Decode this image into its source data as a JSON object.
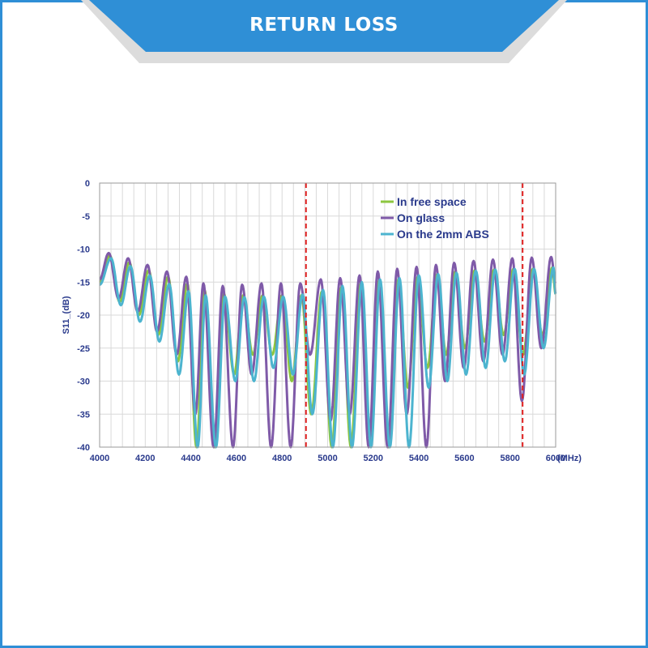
{
  "header": {
    "title": "RETURN LOSS"
  },
  "colors": {
    "frame": "#2f8fd6",
    "free_space": "#8cc63f",
    "glass": "#7f5aa8",
    "abs": "#4cb4cf",
    "marker": "#e02020",
    "axis_text": "#2a3a8c"
  },
  "chart_data": {
    "type": "line",
    "title": "",
    "xlabel": "(MHz)",
    "ylabel": "S11_(dB)",
    "xlim": [
      4000,
      6000
    ],
    "ylim": [
      -40,
      0
    ],
    "x_ticks": [
      "4000",
      "4200",
      "4400",
      "4600",
      "4800",
      "5000",
      "5200",
      "5400",
      "5600",
      "5800",
      "6000"
    ],
    "y_ticks": [
      "0",
      "-5",
      "-10",
      "-15",
      "-20",
      "-25",
      "-30",
      "-35",
      "-40"
    ],
    "grid": true,
    "legend_position": "top-right",
    "markers_x": [
      4905,
      5855
    ],
    "series": [
      {
        "name": "In free space",
        "color": "#8cc63f",
        "width": 3,
        "peaks": [
          [
            4045,
            -11
          ],
          [
            4130,
            -12
          ],
          [
            4215,
            -13.2
          ],
          [
            4300,
            -14.2
          ],
          [
            4385,
            -15.2
          ],
          [
            4460,
            -16.2
          ],
          [
            4545,
            -16.8
          ],
          [
            4630,
            -17
          ],
          [
            4715,
            -17
          ],
          [
            4800,
            -17
          ],
          [
            4885,
            -17
          ],
          [
            4975,
            -16.4
          ],
          [
            5060,
            -15.8
          ],
          [
            5145,
            -15.2
          ],
          [
            5225,
            -14.8
          ],
          [
            5310,
            -14.6
          ],
          [
            5395,
            -14.2
          ],
          [
            5480,
            -13.8
          ],
          [
            5560,
            -13.4
          ],
          [
            5645,
            -13.2
          ],
          [
            5730,
            -13.1
          ],
          [
            5815,
            -13
          ],
          [
            5900,
            -13
          ],
          [
            5985,
            -12.8
          ]
        ],
        "nulls": [
          [
            4088,
            -18
          ],
          [
            4172,
            -20
          ],
          [
            4257,
            -23
          ],
          [
            4343,
            -27
          ],
          [
            4425,
            -40
          ],
          [
            4505,
            -40
          ],
          [
            4590,
            -29
          ],
          [
            4672,
            -26
          ],
          [
            4757,
            -26
          ],
          [
            4843,
            -30
          ],
          [
            4928,
            -35
          ],
          [
            5018,
            -40
          ],
          [
            5102,
            -40
          ],
          [
            5185,
            -38
          ],
          [
            5268,
            -40
          ],
          [
            5352,
            -31
          ],
          [
            5438,
            -28
          ],
          [
            5520,
            -26
          ],
          [
            5602,
            -25
          ],
          [
            5688,
            -24
          ],
          [
            5772,
            -23
          ],
          [
            5857,
            -26
          ],
          [
            5942,
            -23
          ]
        ]
      },
      {
        "name": "On glass",
        "color": "#7f5aa8",
        "width": 3,
        "peaks": [
          [
            4040,
            -10.6
          ],
          [
            4125,
            -11.4
          ],
          [
            4210,
            -12.4
          ],
          [
            4295,
            -13.4
          ],
          [
            4380,
            -14.2
          ],
          [
            4455,
            -15.2
          ],
          [
            4540,
            -15.6
          ],
          [
            4625,
            -15.4
          ],
          [
            4710,
            -15.2
          ],
          [
            4795,
            -15.2
          ],
          [
            4880,
            -15.2
          ],
          [
            4970,
            -14.6
          ],
          [
            5055,
            -14.4
          ],
          [
            5140,
            -14
          ],
          [
            5220,
            -13.4
          ],
          [
            5305,
            -13
          ],
          [
            5390,
            -12.7
          ],
          [
            5475,
            -12.4
          ],
          [
            5555,
            -12.1
          ],
          [
            5640,
            -11.8
          ],
          [
            5725,
            -11.6
          ],
          [
            5810,
            -11.4
          ],
          [
            5895,
            -11.3
          ],
          [
            5980,
            -11.2
          ]
        ],
        "nulls": [
          [
            4083,
            -17.5
          ],
          [
            4167,
            -19.5
          ],
          [
            4252,
            -22.5
          ],
          [
            4338,
            -26
          ],
          [
            4420,
            -35
          ],
          [
            4500,
            -40
          ],
          [
            4585,
            -40
          ],
          [
            4667,
            -29
          ],
          [
            4752,
            -40
          ],
          [
            4838,
            -40
          ],
          [
            4923,
            -26
          ],
          [
            5013,
            -36
          ],
          [
            5097,
            -35
          ],
          [
            5180,
            -40
          ],
          [
            5263,
            -40
          ],
          [
            5347,
            -35
          ],
          [
            5433,
            -40
          ],
          [
            5515,
            -30
          ],
          [
            5597,
            -28
          ],
          [
            5683,
            -27
          ],
          [
            5767,
            -26
          ],
          [
            5852,
            -33
          ],
          [
            5937,
            -25
          ]
        ]
      },
      {
        "name": "On the 2mm ABS",
        "color": "#4cb4cf",
        "width": 3,
        "peaks": [
          [
            4050,
            -11.4
          ],
          [
            4135,
            -12.6
          ],
          [
            4220,
            -14
          ],
          [
            4305,
            -15.3
          ],
          [
            4390,
            -16.4
          ],
          [
            4465,
            -17
          ],
          [
            4550,
            -17.2
          ],
          [
            4635,
            -17.3
          ],
          [
            4720,
            -17.2
          ],
          [
            4805,
            -17.2
          ],
          [
            4890,
            -16.9
          ],
          [
            4980,
            -16.2
          ],
          [
            5065,
            -15.6
          ],
          [
            5150,
            -15
          ],
          [
            5230,
            -14.6
          ],
          [
            5315,
            -14.4
          ],
          [
            5400,
            -14
          ],
          [
            5485,
            -13.8
          ],
          [
            5565,
            -13.6
          ],
          [
            5650,
            -13.3
          ],
          [
            5735,
            -13.1
          ],
          [
            5820,
            -13
          ],
          [
            5905,
            -13
          ],
          [
            5990,
            -12.8
          ]
        ],
        "nulls": [
          [
            4093,
            -18.5
          ],
          [
            4177,
            -21
          ],
          [
            4262,
            -24
          ],
          [
            4348,
            -29
          ],
          [
            4430,
            -40
          ],
          [
            4510,
            -40
          ],
          [
            4595,
            -30
          ],
          [
            4677,
            -30
          ],
          [
            4762,
            -28
          ],
          [
            4848,
            -29
          ],
          [
            4933,
            -35
          ],
          [
            5023,
            -40
          ],
          [
            5107,
            -40
          ],
          [
            5190,
            -40
          ],
          [
            5273,
            -40
          ],
          [
            5357,
            -40
          ],
          [
            5443,
            -31
          ],
          [
            5525,
            -30
          ],
          [
            5607,
            -29
          ],
          [
            5693,
            -28
          ],
          [
            5777,
            -27
          ],
          [
            5862,
            -29
          ],
          [
            5947,
            -25
          ]
        ]
      }
    ]
  }
}
